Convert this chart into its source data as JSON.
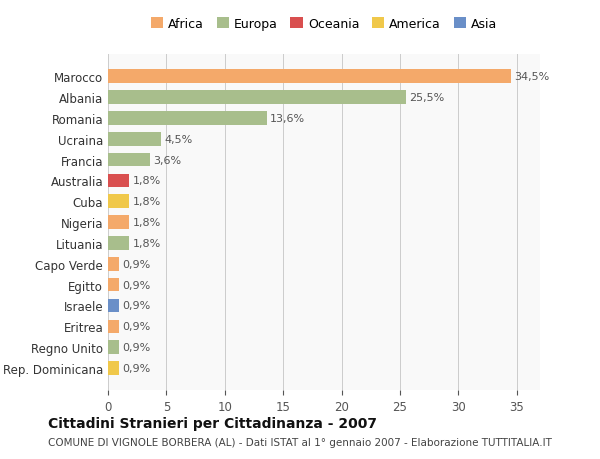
{
  "countries": [
    "Marocco",
    "Albania",
    "Romania",
    "Ucraina",
    "Francia",
    "Australia",
    "Cuba",
    "Nigeria",
    "Lituania",
    "Capo Verde",
    "Egitto",
    "Israele",
    "Eritrea",
    "Regno Unito",
    "Rep. Dominicana"
  ],
  "values": [
    34.5,
    25.5,
    13.6,
    4.5,
    3.6,
    1.8,
    1.8,
    1.8,
    1.8,
    0.9,
    0.9,
    0.9,
    0.9,
    0.9,
    0.9
  ],
  "labels": [
    "34,5%",
    "25,5%",
    "13,6%",
    "4,5%",
    "3,6%",
    "1,8%",
    "1,8%",
    "1,8%",
    "1,8%",
    "0,9%",
    "0,9%",
    "0,9%",
    "0,9%",
    "0,9%",
    "0,9%"
  ],
  "continents": [
    "Africa",
    "Europa",
    "Europa",
    "Europa",
    "Europa",
    "Oceania",
    "America",
    "Africa",
    "Europa",
    "Africa",
    "Africa",
    "Asia",
    "Africa",
    "Europa",
    "America"
  ],
  "colors": {
    "Africa": "#F4A96A",
    "Europa": "#A8BE8C",
    "Oceania": "#D94F4F",
    "America": "#F0C84A",
    "Asia": "#6A8FC8"
  },
  "legend_order": [
    "Africa",
    "Europa",
    "Oceania",
    "America",
    "Asia"
  ],
  "legend_colors": {
    "Africa": "#F4A96A",
    "Europa": "#A8BE8C",
    "Oceania": "#D94F4F",
    "America": "#F0C84A",
    "Asia": "#6A8FC8"
  },
  "title": "Cittadini Stranieri per Cittadinanza - 2007",
  "subtitle": "COMUNE DI VIGNOLE BORBERA (AL) - Dati ISTAT al 1° gennaio 2007 - Elaborazione TUTTITALIA.IT",
  "xlim": [
    0,
    37
  ],
  "xticks": [
    0,
    5,
    10,
    15,
    20,
    25,
    30,
    35
  ],
  "bg_color": "#FFFFFF",
  "grid_color": "#CCCCCC",
  "bar_height": 0.65
}
